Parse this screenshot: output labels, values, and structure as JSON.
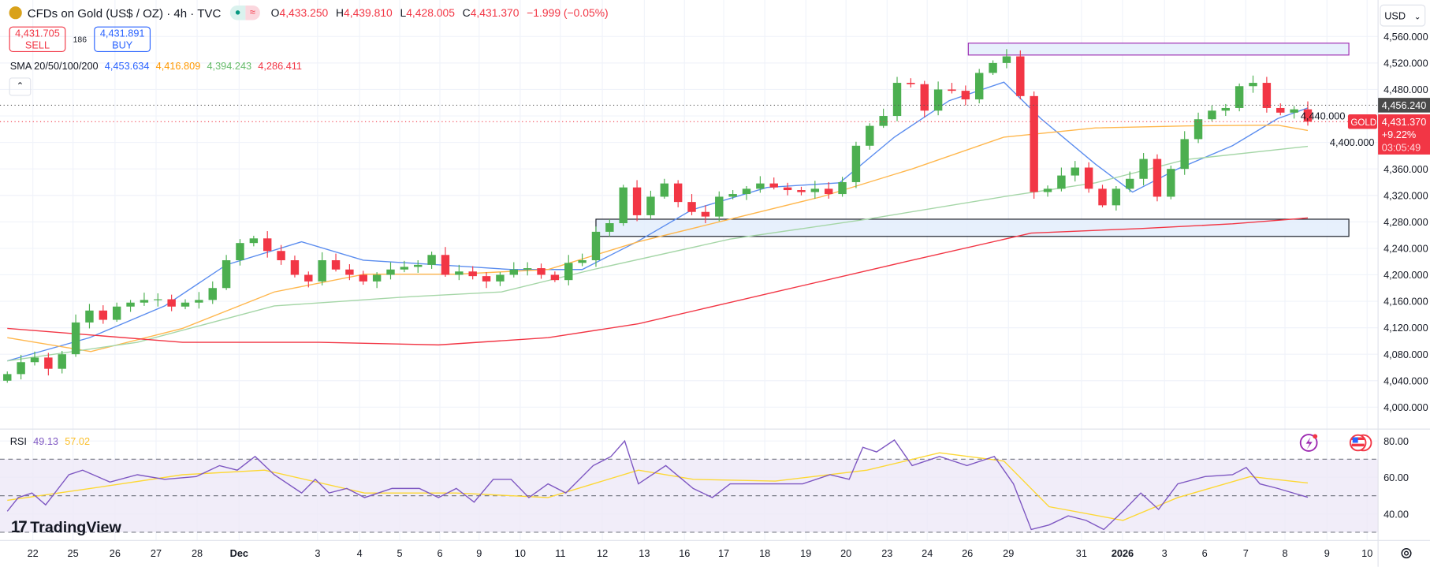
{
  "header": {
    "symbol_title": "CFDs on Gold (US$ / OZ) · 4h · TVC",
    "ohlc": {
      "o_label": "O",
      "o": "4,433.250",
      "h_label": "H",
      "h": "4,439.810",
      "l_label": "L",
      "l": "4,428.005",
      "c_label": "C",
      "c": "4,431.370",
      "change": "−1.999 (−0.05%)"
    },
    "status_dot_color": "#089981"
  },
  "trade": {
    "sell_price": "4,431.705",
    "sell_label": "SELL",
    "spread": "186",
    "buy_price": "4,431.891",
    "buy_label": "BUY"
  },
  "indicators": {
    "sma_label": "SMA 20/50/100/200",
    "sma_values": [
      "4,453.634",
      "4,416.809",
      "4,394.243",
      "4,286.411"
    ],
    "sma_colors": [
      "#2962ff",
      "#ff9800",
      "#66bb6a",
      "#f23645"
    ],
    "rsi_label": "RSI",
    "rsi_value": "49.13",
    "rsi_ma_value": "57.02"
  },
  "axis": {
    "currency": "USD",
    "price_ticks": [
      "4,560.000",
      "4,520.000",
      "4,480.000",
      "4,440.000",
      "4,400.000",
      "4,360.000",
      "4,320.000",
      "4,280.000",
      "4,240.000",
      "4,200.000",
      "4,160.000",
      "4,120.000",
      "4,080.000",
      "4,040.000",
      "4,000.000"
    ],
    "rsi_ticks": [
      "80.00",
      "60.00",
      "40.00"
    ],
    "time_ticks": [
      "22",
      "25",
      "26",
      "27",
      "28",
      "Dec",
      "3",
      "4",
      "5",
      "6",
      "9",
      "10",
      "11",
      "12",
      "13",
      "16",
      "17",
      "18",
      "19",
      "20",
      "23",
      "24",
      "26",
      "29",
      "31",
      "2026",
      "3",
      "6",
      "7",
      "8",
      "9",
      "10"
    ],
    "bold_time_ticks": [
      "Dec",
      "2026"
    ]
  },
  "price_tags": {
    "prev_level": "4,456.240",
    "symbol": "GOLD",
    "last": "4,431.370",
    "change_pct": "+9.22%",
    "countdown": "03:05:49"
  },
  "branding": {
    "logo_text": "TradingView"
  },
  "colors": {
    "up": "#4caf50",
    "down": "#f23645",
    "rsi": "#7e57c2",
    "rsi_ma": "#fdd835",
    "box_purple": "#9c27b0",
    "box_fill": "#e3edfb"
  },
  "chart_data": {
    "type": "candlestick",
    "ylim": [
      4000,
      4560
    ],
    "rsi_ylim": [
      30,
      80
    ],
    "first_open": 4040,
    "closes": [
      4050,
      4068,
      4075,
      4058,
      4080,
      4128,
      4146,
      4132,
      4152,
      4158,
      4162,
      4163,
      4152,
      4158,
      4162,
      4180,
      4222,
      4248,
      4255,
      4236,
      4222,
      4200,
      4190,
      4222,
      4208,
      4200,
      4190,
      4200,
      4208,
      4212,
      4215,
      4230,
      4200,
      4205,
      4198,
      4190,
      4200,
      4208,
      4210,
      4200,
      4192,
      4218,
      4222,
      4265,
      4278,
      4332,
      4290,
      4318,
      4338,
      4310,
      4295,
      4288,
      4318,
      4322,
      4330,
      4338,
      4332,
      4328,
      4325,
      4330,
      4322,
      4340,
      4395,
      4425,
      4440,
      4490,
      4488,
      4448,
      4480,
      4478,
      4465,
      4505,
      4520,
      4530,
      4470,
      4325,
      4330,
      4350,
      4362,
      4330,
      4305,
      4330,
      4345,
      4375,
      4318,
      4360,
      4405,
      4435,
      4448,
      4452,
      4485,
      4490,
      4452,
      4445,
      4450,
      4431.37
    ],
    "sma": [
      {
        "name": "SMA 20",
        "color": "#5b8def",
        "points": [
          [
            0,
            4070
          ],
          [
            6,
            4105
          ],
          [
            11.5,
            4153
          ],
          [
            16,
            4215
          ],
          [
            21.5,
            4250
          ],
          [
            26,
            4222
          ],
          [
            31.5,
            4215
          ],
          [
            36.8,
            4208
          ],
          [
            42,
            4208
          ],
          [
            46,
            4250
          ],
          [
            50,
            4298
          ],
          [
            55.5,
            4332
          ],
          [
            60.8,
            4339
          ],
          [
            64.8,
            4408
          ],
          [
            68.8,
            4463
          ],
          [
            72.8,
            4491
          ],
          [
            75.5,
            4436
          ],
          [
            79.5,
            4367
          ],
          [
            82.2,
            4325
          ],
          [
            85.5,
            4360
          ],
          [
            89.5,
            4395
          ],
          [
            92.8,
            4436
          ],
          [
            95,
            4452
          ]
        ]
      },
      {
        "name": "SMA 50",
        "color": "#ffb74d",
        "points": [
          [
            0,
            4105
          ],
          [
            6.1,
            4084
          ],
          [
            12.8,
            4119
          ],
          [
            19.5,
            4174
          ],
          [
            26.1,
            4201
          ],
          [
            32.8,
            4201
          ],
          [
            39.5,
            4208
          ],
          [
            46.1,
            4250
          ],
          [
            52.8,
            4284
          ],
          [
            59.5,
            4318
          ],
          [
            66.1,
            4360
          ],
          [
            72.8,
            4408
          ],
          [
            79.5,
            4422
          ],
          [
            86.1,
            4425
          ],
          [
            92.8,
            4426
          ],
          [
            95,
            4418
          ]
        ]
      },
      {
        "name": "SMA 100",
        "color": "#a5d6a7",
        "points": [
          [
            0,
            4070
          ],
          [
            9.5,
            4098
          ],
          [
            19.5,
            4153
          ],
          [
            29.5,
            4167
          ],
          [
            36.1,
            4174
          ],
          [
            42.8,
            4208
          ],
          [
            52.8,
            4254
          ],
          [
            62.8,
            4284
          ],
          [
            72.8,
            4318
          ],
          [
            79.5,
            4339
          ],
          [
            86.1,
            4374
          ],
          [
            95,
            4394
          ]
        ]
      },
      {
        "name": "SMA 200",
        "color": "#f23645",
        "points": [
          [
            0,
            4119
          ],
          [
            12.8,
            4098
          ],
          [
            22.8,
            4098
          ],
          [
            31.5,
            4094
          ],
          [
            39.5,
            4105
          ],
          [
            46.1,
            4126
          ],
          [
            56.1,
            4174
          ],
          [
            66.1,
            4222
          ],
          [
            74.8,
            4263
          ],
          [
            82.8,
            4270
          ],
          [
            89.5,
            4277
          ],
          [
            95,
            4286
          ]
        ]
      }
    ],
    "rsi": [
      [
        0,
        41.5
      ],
      [
        0.8,
        49
      ],
      [
        1.8,
        51.5
      ],
      [
        2.8,
        45
      ],
      [
        4.5,
        61.5
      ],
      [
        5.5,
        64
      ],
      [
        7.5,
        57.5
      ],
      [
        9.5,
        61.5
      ],
      [
        11.5,
        59
      ],
      [
        13.8,
        60.5
      ],
      [
        15.5,
        66.5
      ],
      [
        16.8,
        64
      ],
      [
        18.1,
        71.5
      ],
      [
        19.5,
        61.5
      ],
      [
        21.5,
        51.5
      ],
      [
        22.5,
        59
      ],
      [
        23.5,
        51.5
      ],
      [
        24.8,
        54
      ],
      [
        26.1,
        49
      ],
      [
        28.1,
        54
      ],
      [
        30.1,
        54
      ],
      [
        31.5,
        49
      ],
      [
        32.8,
        54
      ],
      [
        34.1,
        46.5
      ],
      [
        35.5,
        59
      ],
      [
        36.8,
        59
      ],
      [
        38.1,
        49
      ],
      [
        39.5,
        56.5
      ],
      [
        40.8,
        51.5
      ],
      [
        42.8,
        66.5
      ],
      [
        44.1,
        71.5
      ],
      [
        45.1,
        80
      ],
      [
        46.1,
        56.5
      ],
      [
        48.1,
        66.5
      ],
      [
        50.1,
        54
      ],
      [
        51.5,
        49
      ],
      [
        52.8,
        56.5
      ],
      [
        55.5,
        56.5
      ],
      [
        58.1,
        56.5
      ],
      [
        60.1,
        61.5
      ],
      [
        61.5,
        59
      ],
      [
        62.5,
        76.5
      ],
      [
        63.5,
        74
      ],
      [
        64.8,
        80.5
      ],
      [
        66.1,
        66.5
      ],
      [
        68.1,
        71.5
      ],
      [
        70.1,
        66.5
      ],
      [
        72.1,
        71.5
      ],
      [
        73.5,
        56.5
      ],
      [
        74.8,
        31.5
      ],
      [
        76.1,
        34
      ],
      [
        77.5,
        39
      ],
      [
        78.8,
        36.5
      ],
      [
        80.1,
        31.5
      ],
      [
        81.5,
        41.5
      ],
      [
        82.8,
        51.5
      ],
      [
        84.1,
        42.5
      ],
      [
        85.5,
        56.5
      ],
      [
        87.5,
        60.5
      ],
      [
        89.5,
        61.5
      ],
      [
        90.5,
        65.5
      ],
      [
        91.5,
        56.5
      ],
      [
        92.8,
        54
      ],
      [
        95,
        49.13
      ]
    ],
    "rsi_ma": [
      [
        0,
        47.5
      ],
      [
        6.1,
        54
      ],
      [
        12.8,
        61.5
      ],
      [
        18.8,
        64
      ],
      [
        26.1,
        51.5
      ],
      [
        32.8,
        51.5
      ],
      [
        39.5,
        49
      ],
      [
        46.1,
        64
      ],
      [
        50.1,
        59
      ],
      [
        56.1,
        58
      ],
      [
        62.8,
        64
      ],
      [
        68.1,
        73.5
      ],
      [
        72.8,
        69
      ],
      [
        76.1,
        44
      ],
      [
        81.5,
        36.5
      ],
      [
        85.5,
        49
      ],
      [
        90.8,
        60.5
      ],
      [
        95,
        57.02
      ]
    ],
    "rsi_bands": [
      70,
      50,
      30
    ],
    "zones": [
      {
        "from_index": 70.2,
        "to_index": 98,
        "low": 4532,
        "high": 4550,
        "color": "#9c27b0"
      },
      {
        "from_index": 43,
        "to_index": 98,
        "low": 4258,
        "high": 4284,
        "color": "#131722"
      }
    ],
    "prev_level_value": 4456.24,
    "last_value": 4431.37
  }
}
